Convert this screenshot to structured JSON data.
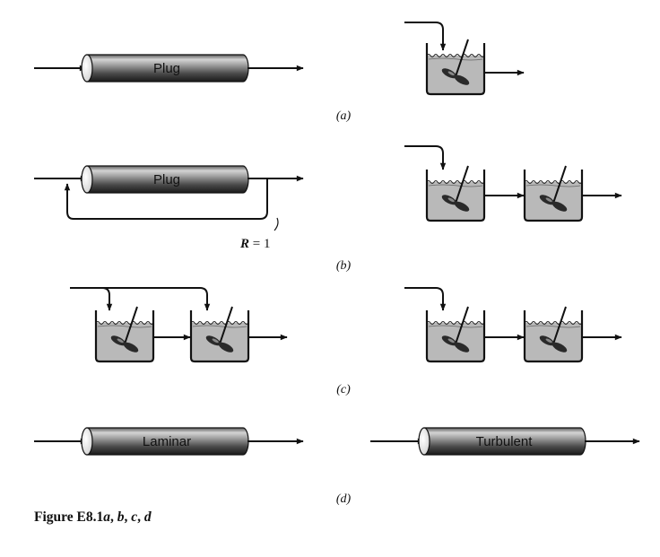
{
  "tubes": {
    "a": "Plug",
    "b": "Plug",
    "d_left": "Laminar",
    "d_right": "Turbulent"
  },
  "labels": {
    "a": "(a)",
    "b": "(b)",
    "c": "(c)",
    "d": "(d)"
  },
  "recycle": {
    "symbol": "R",
    "equals": " = 1"
  },
  "caption": {
    "prefix": "Figure E8.1",
    "a": "a",
    "sep1": ", ",
    "b": "b",
    "sep2": ", ",
    "c": "c",
    "sep3": ", ",
    "d": "d"
  }
}
